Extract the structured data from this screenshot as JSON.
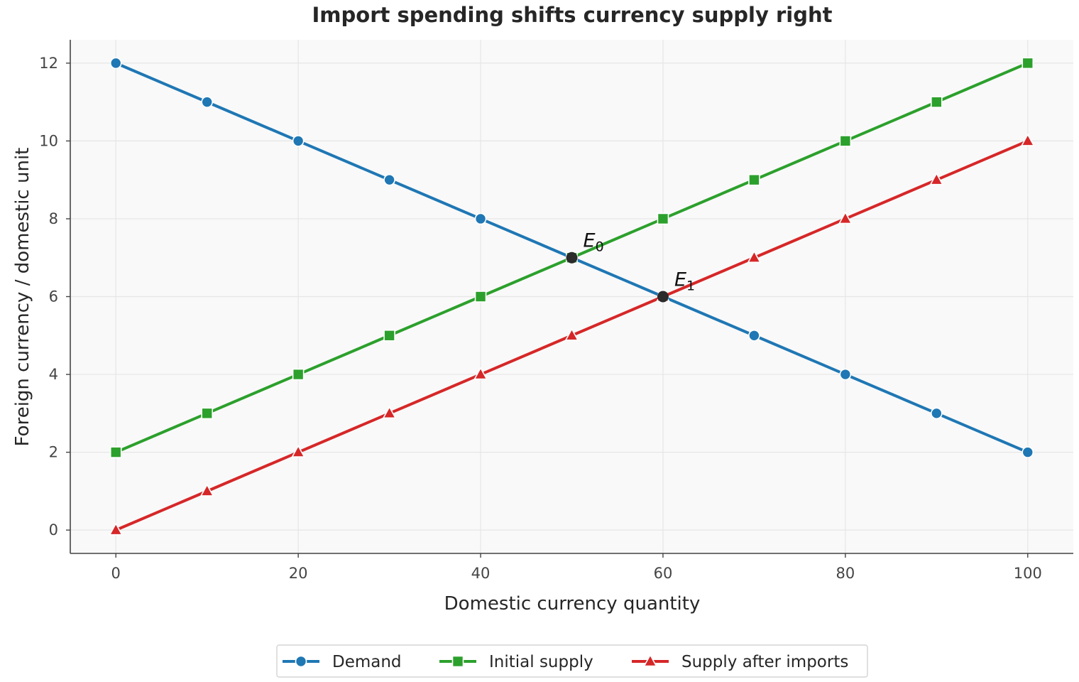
{
  "chart_data": {
    "type": "line",
    "title": "Import spending shifts currency supply right",
    "xlabel": "Domestic currency quantity",
    "ylabel": "Foreign currency / domestic unit",
    "xlim": [
      -5,
      105
    ],
    "ylim": [
      -0.6,
      12.6
    ],
    "xticks": [
      0,
      20,
      40,
      60,
      80,
      100
    ],
    "yticks": [
      0,
      2,
      4,
      6,
      8,
      10,
      12
    ],
    "grid": true,
    "legend_position": "bottom-center",
    "x": [
      0,
      10,
      20,
      30,
      40,
      50,
      60,
      70,
      80,
      90,
      100
    ],
    "series": [
      {
        "name": "Demand",
        "marker": "circle",
        "color": "#1f77b4",
        "values": [
          12,
          11,
          10,
          9,
          8,
          7,
          6,
          5,
          4,
          3,
          2
        ]
      },
      {
        "name": "Initial supply",
        "marker": "square",
        "color": "#2ca02c",
        "values": [
          2,
          3,
          4,
          5,
          6,
          7,
          8,
          9,
          10,
          11,
          12
        ]
      },
      {
        "name": "Supply after imports",
        "marker": "triangle",
        "color": "#d62728",
        "values": [
          0,
          1,
          2,
          3,
          4,
          5,
          6,
          7,
          8,
          9,
          10
        ]
      }
    ],
    "annotations": [
      {
        "label": "E",
        "subscript": "0",
        "x": 50,
        "y": 7
      },
      {
        "label": "E",
        "subscript": "1",
        "x": 60,
        "y": 6
      }
    ]
  },
  "colors": {
    "plot_background": "#f9f9f9",
    "equilibrium_point": "#2b2b2b"
  }
}
